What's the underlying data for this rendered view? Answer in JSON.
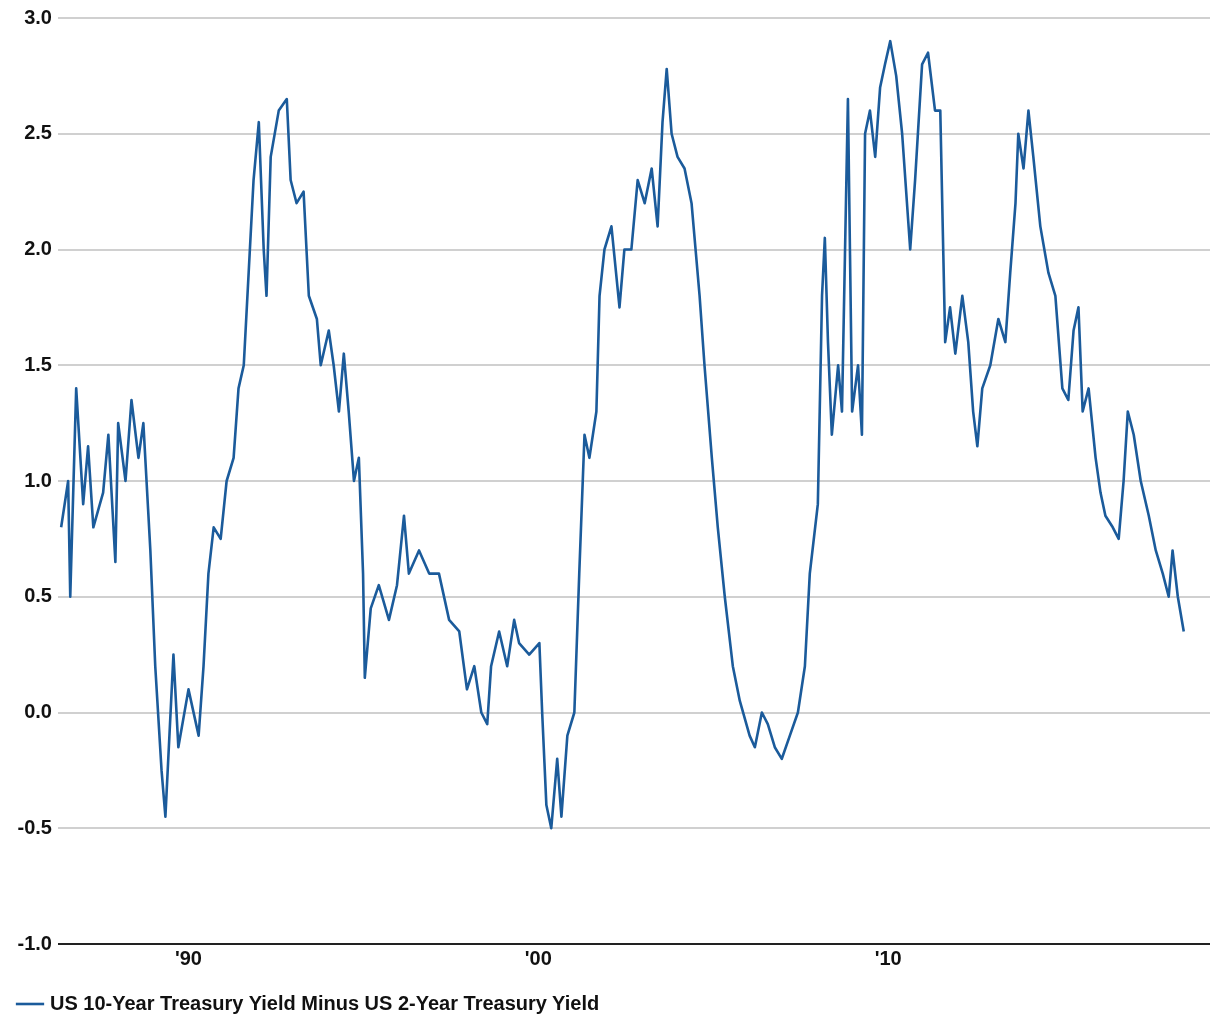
{
  "chart_data": {
    "type": "line",
    "legend": "bottom left",
    "grid": "y",
    "marker": "none",
    "line_style": "solid",
    "xlim": [
      1986.27,
      2019.2
    ],
    "xticks": [
      {
        "value": 1990,
        "label": "'90"
      },
      {
        "value": 2000,
        "label": "'00"
      },
      {
        "value": 2010,
        "label": "'10"
      }
    ],
    "ylim": [
      -1,
      3
    ],
    "yticks": [
      {
        "value": -1,
        "label": "-1.0"
      },
      {
        "value": -0.5,
        "label": "-0.5"
      },
      {
        "value": 0,
        "label": "0.0"
      },
      {
        "value": 0.5,
        "label": "0.5"
      },
      {
        "value": 1,
        "label": "1.0"
      },
      {
        "value": 1.5,
        "label": "1.5"
      },
      {
        "value": 2,
        "label": "2.0"
      },
      {
        "value": 2.5,
        "label": "2.5"
      },
      {
        "value": 3,
        "label": "3.0"
      }
    ],
    "x": [
      1986.36,
      1986.56,
      1986.62,
      1986.79,
      1986.99,
      1987.13,
      1987.28,
      1987.56,
      1987.71,
      1987.91,
      1987.99,
      1988.2,
      1988.37,
      1988.57,
      1988.71,
      1988.91,
      1989.05,
      1989.23,
      1989.34,
      1989.57,
      1989.71,
      1990.0,
      1990.29,
      1990.43,
      1990.57,
      1990.72,
      1990.92,
      1991.09,
      1991.29,
      1991.43,
      1991.58,
      1991.72,
      1991.86,
      1992.01,
      1992.15,
      1992.23,
      1992.35,
      1992.58,
      1992.81,
      1992.92,
      1993.09,
      1993.29,
      1993.44,
      1993.67,
      1993.78,
      1994.01,
      1994.15,
      1994.3,
      1994.44,
      1994.58,
      1994.73,
      1994.87,
      1994.99,
      1995.04,
      1995.21,
      1995.44,
      1995.73,
      1995.96,
      1996.16,
      1996.3,
      1996.59,
      1996.88,
      1997.16,
      1997.45,
      1997.74,
      1997.96,
      1998.17,
      1998.37,
      1998.54,
      1998.65,
      1998.88,
      1999.11,
      1999.31,
      1999.45,
      1999.74,
      2000.03,
      2000.11,
      2000.23,
      2000.37,
      2000.54,
      2000.66,
      2000.83,
      2001.03,
      2001.17,
      2001.32,
      2001.46,
      2001.66,
      2001.75,
      2001.89,
      2002.09,
      2002.32,
      2002.46,
      2002.66,
      2002.84,
      2003.04,
      2003.24,
      2003.41,
      2003.55,
      2003.67,
      2003.81,
      2003.98,
      2004.18,
      2004.38,
      2004.61,
      2004.75,
      2004.96,
      2005.13,
      2005.33,
      2005.56,
      2005.76,
      2006.04,
      2006.19,
      2006.39,
      2006.56,
      2006.76,
      2006.96,
      2007.19,
      2007.42,
      2007.62,
      2007.76,
      2007.99,
      2008.11,
      2008.19,
      2008.28,
      2008.39,
      2008.57,
      2008.68,
      2008.85,
      2008.97,
      2009.14,
      2009.25,
      2009.34,
      2009.48,
      2009.63,
      2009.77,
      2009.91,
      2010.06,
      2010.23,
      2010.4,
      2010.63,
      2010.77,
      2010.97,
      2011.14,
      2011.34,
      2011.49,
      2011.63,
      2011.77,
      2011.92,
      2012.12,
      2012.29,
      2012.43,
      2012.55,
      2012.69,
      2012.92,
      2013.15,
      2013.35,
      2013.49,
      2013.64,
      2013.72,
      2013.87,
      2014.01,
      2014.15,
      2014.35,
      2014.58,
      2014.78,
      2014.98,
      2015.15,
      2015.3,
      2015.44,
      2015.56,
      2015.73,
      2015.93,
      2016.07,
      2016.21,
      2016.42,
      2016.59,
      2016.73,
      2016.85,
      2017.02,
      2017.22,
      2017.45,
      2017.65,
      2017.85,
      2018.02,
      2018.13,
      2018.28,
      2018.45
    ],
    "series": [
      {
        "name": "US 10-Year Treasury Yield Minus US 2-Year Treasury Yield",
        "color": "#1b5b9b",
        "values": [
          0.8,
          1.0,
          0.5,
          1.4,
          0.9,
          1.15,
          0.8,
          0.95,
          1.2,
          0.65,
          1.25,
          1.0,
          1.35,
          1.1,
          1.25,
          0.7,
          0.2,
          -0.25,
          -0.45,
          0.25,
          -0.15,
          0.1,
          -0.1,
          0.2,
          0.6,
          0.8,
          0.75,
          1.0,
          1.1,
          1.4,
          1.5,
          1.9,
          2.3,
          2.55,
          2.0,
          1.8,
          2.4,
          2.6,
          2.65,
          2.3,
          2.2,
          2.25,
          1.8,
          1.7,
          1.5,
          1.65,
          1.5,
          1.3,
          1.55,
          1.3,
          1.0,
          1.1,
          0.6,
          0.15,
          0.45,
          0.55,
          0.4,
          0.55,
          0.85,
          0.6,
          0.7,
          0.6,
          0.6,
          0.4,
          0.35,
          0.1,
          0.2,
          0.0,
          -0.05,
          0.2,
          0.35,
          0.2,
          0.4,
          0.3,
          0.25,
          0.3,
          0.0,
          -0.4,
          -0.5,
          -0.2,
          -0.45,
          -0.1,
          0.0,
          0.6,
          1.2,
          1.1,
          1.3,
          1.8,
          2.0,
          2.1,
          1.75,
          2.0,
          2.0,
          2.3,
          2.2,
          2.35,
          2.1,
          2.55,
          2.78,
          2.5,
          2.4,
          2.35,
          2.2,
          1.8,
          1.5,
          1.1,
          0.8,
          0.5,
          0.2,
          0.05,
          -0.1,
          -0.15,
          0.0,
          -0.05,
          -0.15,
          -0.2,
          -0.1,
          0.0,
          0.2,
          0.6,
          0.9,
          1.8,
          2.05,
          1.6,
          1.2,
          1.5,
          1.3,
          2.65,
          1.3,
          1.5,
          1.2,
          2.5,
          2.6,
          2.4,
          2.7,
          2.8,
          2.9,
          2.75,
          2.5,
          2.0,
          2.3,
          2.8,
          2.85,
          2.6,
          2.6,
          1.6,
          1.75,
          1.55,
          1.8,
          1.6,
          1.3,
          1.15,
          1.4,
          1.5,
          1.7,
          1.6,
          1.9,
          2.2,
          2.5,
          2.35,
          2.6,
          2.4,
          2.1,
          1.9,
          1.8,
          1.4,
          1.35,
          1.65,
          1.75,
          1.3,
          1.4,
          1.1,
          0.95,
          0.85,
          0.8,
          0.75,
          1.0,
          1.3,
          1.2,
          1.0,
          0.85,
          0.7,
          0.6,
          0.5,
          0.7,
          0.5,
          0.35
        ]
      }
    ]
  }
}
